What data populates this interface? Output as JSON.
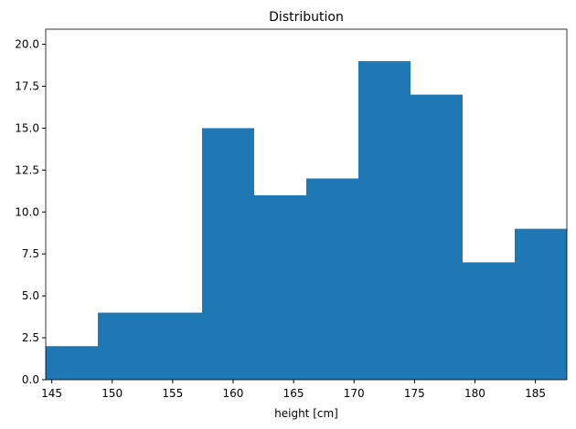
{
  "chart_data": {
    "type": "histogram",
    "title": "Distribution",
    "x_label": "height [cm]",
    "bins": [
      144.5,
      148.81,
      153.12,
      157.43,
      161.74,
      166.05,
      170.36,
      174.67,
      178.98,
      183.29,
      187.6
    ],
    "values": [
      2,
      4,
      4,
      15,
      11,
      12,
      19,
      17,
      7,
      9
    ],
    "color": "#1f77b4",
    "xlim": [
      144.5,
      187.6
    ],
    "xticks": [
      145,
      150,
      155,
      160,
      165,
      170,
      175,
      180,
      185
    ],
    "ylim": [
      0,
      20.9
    ],
    "yticks": [
      {
        "value": 0,
        "label": "0.0"
      },
      2.5,
      {
        "value": 5,
        "label": "5.0"
      },
      7.5,
      {
        "value": 10,
        "label": "10.0"
      },
      12.5,
      {
        "value": 15,
        "label": "15.0"
      },
      17.5,
      {
        "value": 20,
        "label": "20.0"
      }
    ],
    "grid": false
  }
}
